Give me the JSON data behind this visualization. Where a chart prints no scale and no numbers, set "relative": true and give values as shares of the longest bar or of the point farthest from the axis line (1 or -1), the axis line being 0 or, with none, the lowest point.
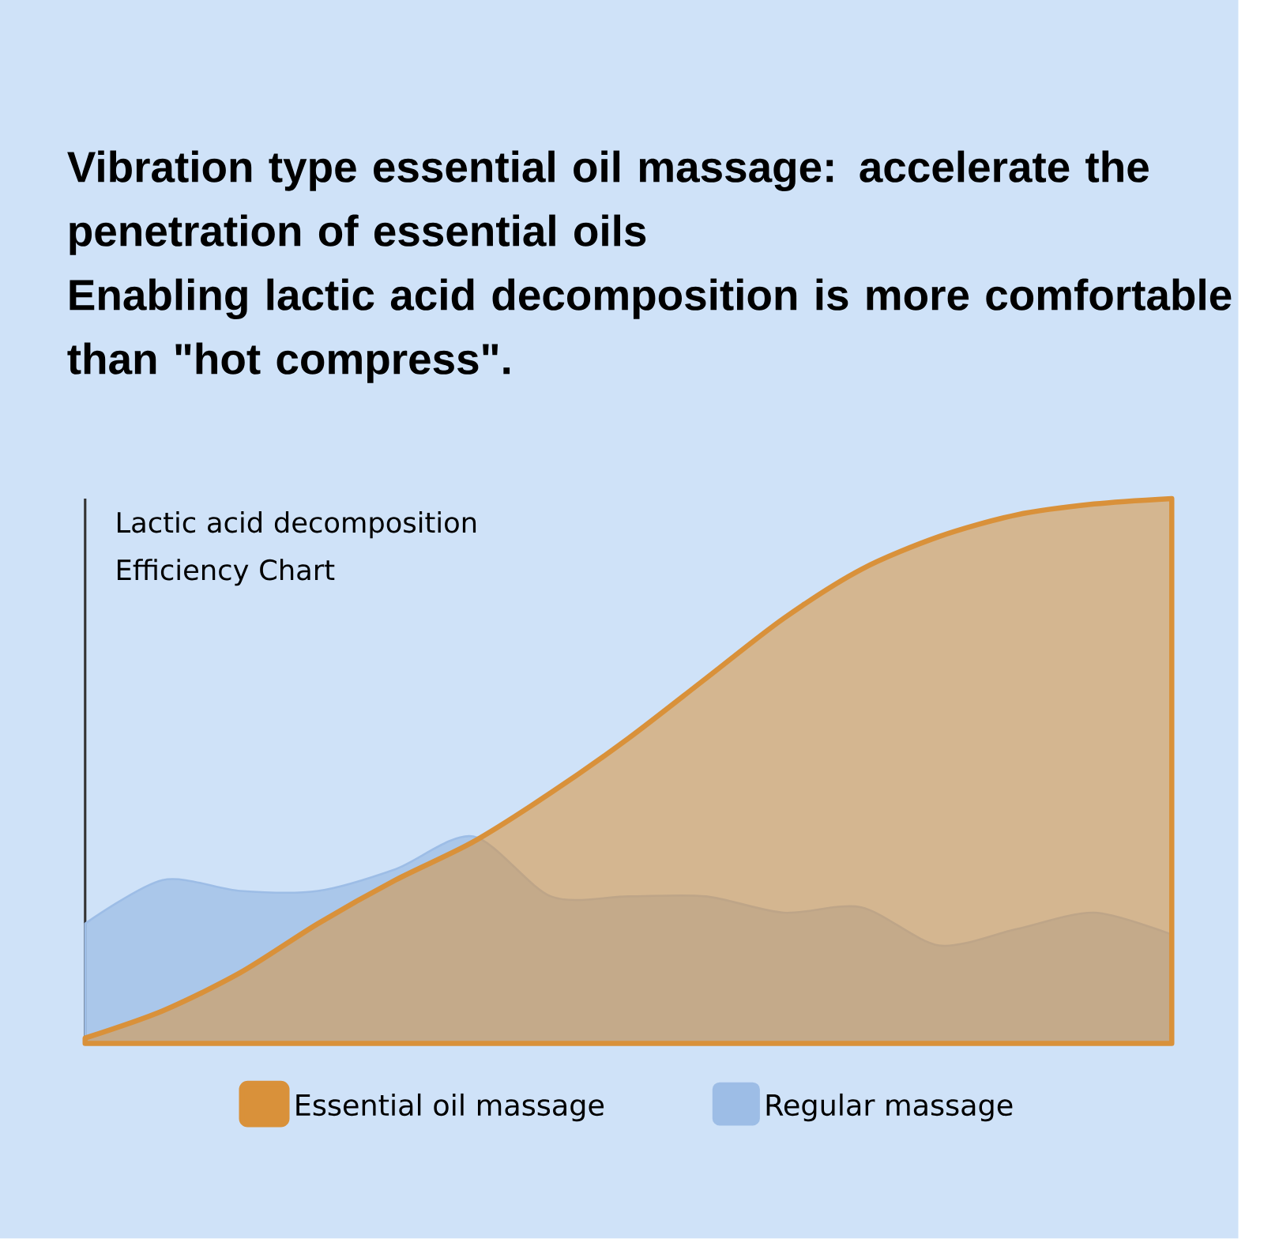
{
  "chart_data": {
    "type": "area",
    "relative": true,
    "title": "Vibration type essential oil massage: accelerate the penetration of essential oils",
    "subtitle": "Enabling lactic acid decomposition is more comfortable than \"hot compress\".",
    "ylabel": "Lactic acid decomposition Efficiency Chart",
    "categories": [
      null,
      null,
      null,
      null,
      null,
      null,
      null,
      null,
      null,
      null,
      null,
      null,
      null,
      null,
      null
    ],
    "series": [
      {
        "name": "Regular massage",
        "color": "#9dbde6",
        "values": [
          0.22,
          0.3,
          0.28,
          0.28,
          0.32,
          0.38,
          0.27,
          0.27,
          0.27,
          0.24,
          0.25,
          0.18,
          0.21,
          0.24,
          0.2
        ]
      },
      {
        "name": "Essential oil massage",
        "color": "#d9913a",
        "values": [
          0.01,
          0.06,
          0.13,
          0.22,
          0.3,
          0.37,
          0.46,
          0.56,
          0.67,
          0.78,
          0.87,
          0.93,
          0.97,
          0.99,
          1.0
        ]
      }
    ],
    "legend": "bottom"
  }
}
